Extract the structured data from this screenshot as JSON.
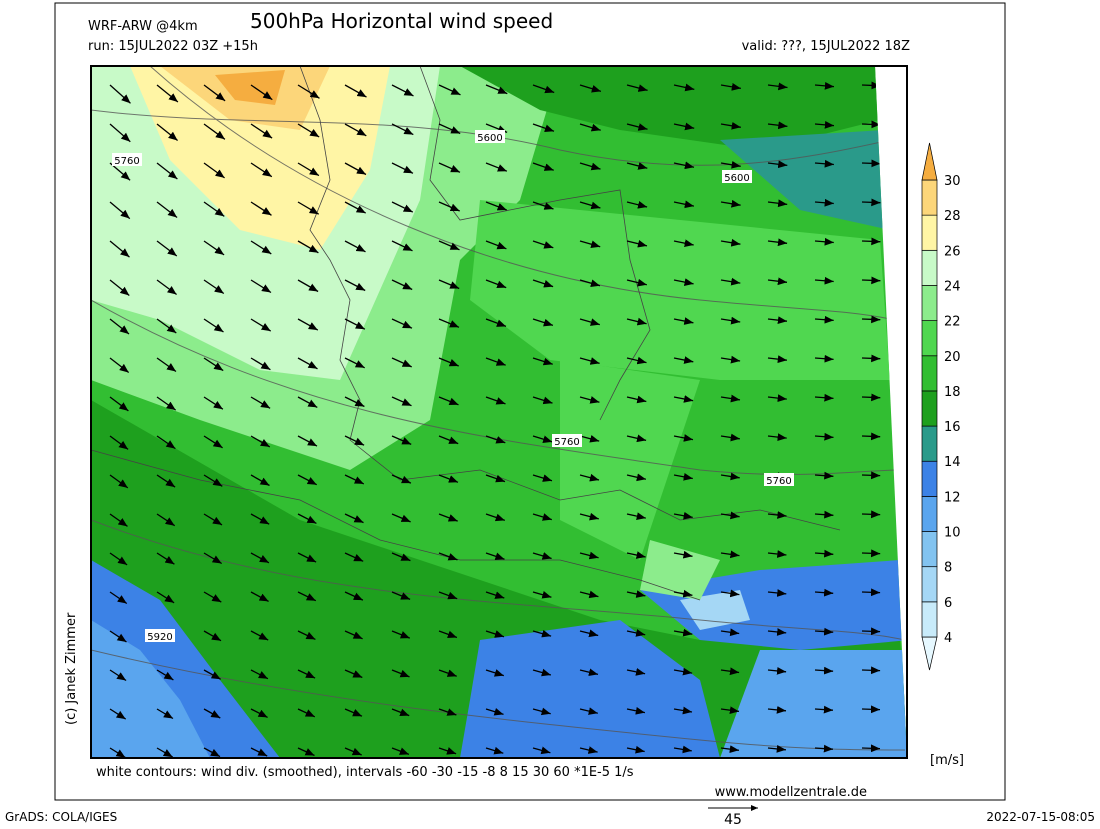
{
  "header": {
    "model": "WRF-ARW @4km",
    "title": "500hPa Horizontal wind speed",
    "run": "run: 15JUL2022 03Z +15h",
    "valid": "valid: ???, 15JUL2022 18Z"
  },
  "credit": "(c) Janek Zimmer",
  "contour_labels": [
    "5600",
    "5600",
    "5760",
    "5760",
    "5760",
    "5920"
  ],
  "colorbar": {
    "unit": "[m/s]",
    "levels": [
      4,
      6,
      8,
      10,
      12,
      14,
      16,
      18,
      20,
      22,
      24,
      26,
      28,
      30
    ],
    "colors": [
      "#e6f8ff",
      "#c8ebfa",
      "#a5d7f5",
      "#82c3f0",
      "#5aa5ee",
      "#3c82e6",
      "#2a9a8a",
      "#1ea01e",
      "#32be32",
      "#50d750",
      "#8cec8c",
      "#c8fac8",
      "#fff5a5",
      "#fcd67a",
      "#f5ad40"
    ]
  },
  "footer": {
    "note": "white contours: wind div. (smoothed), intervals -60 -30 -15 -8 8 15 30 60 *1E-5 1/s",
    "website": "www.modellzentrale.de",
    "software": "GrADS: COLA/IGES",
    "timestamp": "2022-07-15-08:05",
    "reference_arrow": "45"
  }
}
